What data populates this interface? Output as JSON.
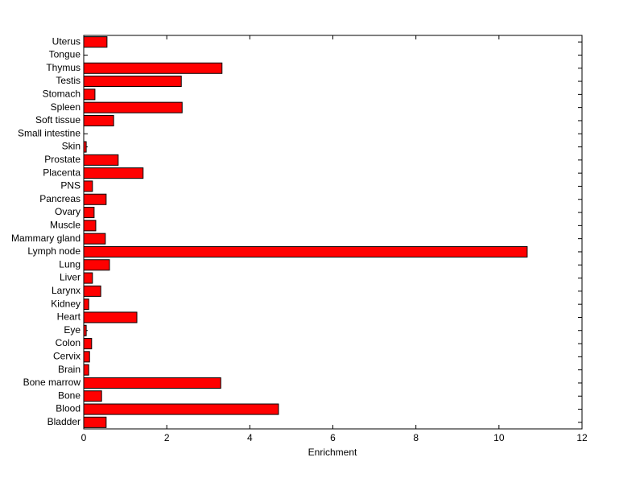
{
  "chart_data": {
    "type": "barh",
    "xlabel": "Enrichment",
    "categories": [
      "Bladder",
      "Blood",
      "Bone",
      "Bone marrow",
      "Brain",
      "Cervix",
      "Colon",
      "Eye",
      "Heart",
      "Kidney",
      "Larynx",
      "Liver",
      "Lung",
      "Lymph node",
      "Mammary gland",
      "Muscle",
      "Ovary",
      "Pancreas",
      "PNS",
      "Placenta",
      "Prostate",
      "Skin",
      "Small intestine",
      "Soft tissue",
      "Spleen",
      "Stomach",
      "Testis",
      "Thymus",
      "Tongue",
      "Uterus"
    ],
    "values": [
      0.54,
      4.69,
      0.43,
      3.3,
      0.12,
      0.14,
      0.19,
      0.06,
      1.28,
      0.12,
      0.41,
      0.21,
      0.62,
      10.68,
      0.52,
      0.29,
      0.25,
      0.54,
      0.21,
      1.43,
      0.83,
      0.06,
      0,
      0.72,
      2.37,
      0.27,
      2.35,
      3.33,
      0,
      0.56
    ],
    "color": "#ff0000",
    "xlim": [
      0,
      12
    ],
    "xticks": [
      0,
      2,
      4,
      6,
      8,
      10,
      12
    ]
  }
}
